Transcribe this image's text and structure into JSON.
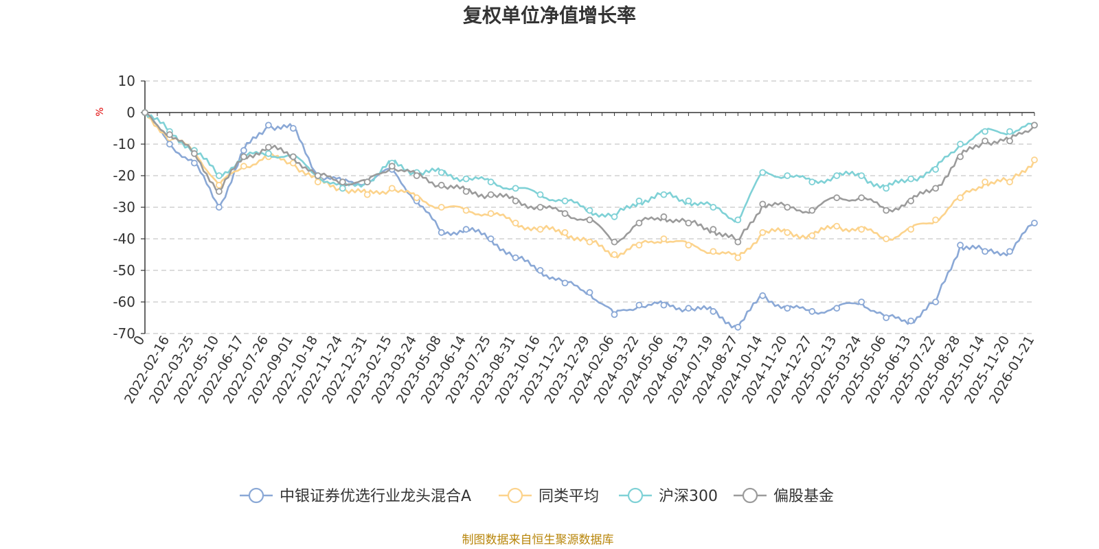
{
  "chart_data": {
    "type": "line",
    "title": "复权单位净值增长率",
    "ylabel": "%",
    "xlabel": "",
    "ylim": [
      -70,
      10
    ],
    "yticks": [
      10,
      0,
      -10,
      -20,
      -30,
      -40,
      -50,
      -60,
      -70
    ],
    "grid": true,
    "legend_position": "bottom",
    "x_origin_label": "0",
    "categories": [
      "2022-02-16",
      "2022-03-25",
      "2022-05-10",
      "2022-06-17",
      "2022-07-26",
      "2022-09-01",
      "2022-10-18",
      "2022-11-24",
      "2022-12-31",
      "2023-02-15",
      "2023-03-24",
      "2023-05-08",
      "2023-06-14",
      "2023-07-25",
      "2023-08-31",
      "2023-10-16",
      "2023-11-22",
      "2023-12-29",
      "2024-02-06",
      "2024-03-22",
      "2024-05-06",
      "2024-06-13",
      "2024-07-19",
      "2024-08-27",
      "2024-10-14",
      "2024-11-20",
      "2024-12-27",
      "2025-02-13",
      "2025-03-24",
      "2025-05-06",
      "2025-06-13",
      "2025-07-22",
      "2025-08-28",
      "2025-10-14",
      "2025-11-20",
      "2026-01-21"
    ],
    "series": [
      {
        "name": "中银证券优选行业龙头混合A",
        "color": "#8aa8d6",
        "values": [
          -10,
          -16,
          -30,
          -12,
          -4,
          -5,
          -20,
          -22,
          -22,
          -18,
          -28,
          -38,
          -37,
          -40,
          -46,
          -50,
          -54,
          -57,
          -64,
          -61,
          -61,
          -62,
          -63,
          -68,
          -58,
          -62,
          -63,
          -62,
          -60,
          -65,
          -66,
          -60,
          -42,
          -44,
          -44,
          -35
        ]
      },
      {
        "name": "同类平均",
        "color": "#fcd38c",
        "values": [
          -8,
          -12,
          -23,
          -17,
          -14,
          -16,
          -22,
          -24,
          -26,
          -24,
          -27,
          -30,
          -31,
          -32,
          -35,
          -37,
          -38,
          -41,
          -45,
          -42,
          -40,
          -42,
          -44,
          -46,
          -38,
          -38,
          -39,
          -36,
          -37,
          -40,
          -37,
          -34,
          -27,
          -22,
          -22,
          -15
        ]
      },
      {
        "name": "沪深300",
        "color": "#7fd1d6",
        "values": [
          -6,
          -12,
          -20,
          -14,
          -13,
          -14,
          -20,
          -24,
          -22,
          -16,
          -19,
          -19,
          -21,
          -22,
          -24,
          -26,
          -28,
          -31,
          -33,
          -28,
          -26,
          -28,
          -30,
          -34,
          -19,
          -20,
          -22,
          -20,
          -20,
          -24,
          -21,
          -18,
          -10,
          -6,
          -6,
          -4
        ]
      },
      {
        "name": "偏股基金",
        "color": "#9b9b9b",
        "values": [
          -7,
          -13,
          -25,
          -14,
          -11,
          -14,
          -20,
          -22,
          -22,
          -17,
          -20,
          -23,
          -25,
          -26,
          -28,
          -30,
          -32,
          -34,
          -41,
          -35,
          -33,
          -35,
          -37,
          -41,
          -29,
          -30,
          -31,
          -27,
          -27,
          -31,
          -28,
          -24,
          -14,
          -9,
          -9,
          -4
        ]
      }
    ]
  },
  "source_note": "制图数据来自恒生聚源数据库"
}
